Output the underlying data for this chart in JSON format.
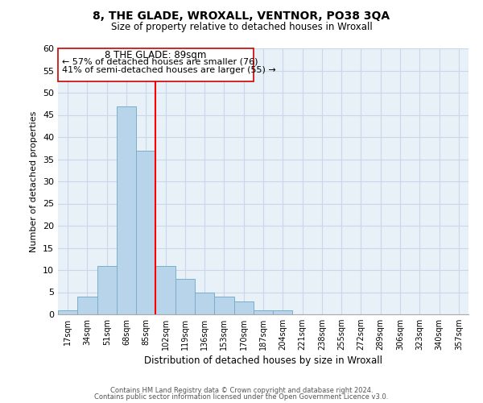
{
  "title": "8, THE GLADE, WROXALL, VENTNOR, PO38 3QA",
  "subtitle": "Size of property relative to detached houses in Wroxall",
  "xlabel": "Distribution of detached houses by size in Wroxall",
  "ylabel": "Number of detached properties",
  "bar_labels": [
    "17sqm",
    "34sqm",
    "51sqm",
    "68sqm",
    "85sqm",
    "102sqm",
    "119sqm",
    "136sqm",
    "153sqm",
    "170sqm",
    "187sqm",
    "204sqm",
    "221sqm",
    "238sqm",
    "255sqm",
    "272sqm",
    "289sqm",
    "306sqm",
    "323sqm",
    "340sqm",
    "357sqm"
  ],
  "bar_heights": [
    1,
    4,
    11,
    47,
    37,
    11,
    8,
    5,
    4,
    3,
    1,
    1,
    0,
    0,
    0,
    0,
    0,
    0,
    0,
    0,
    0
  ],
  "bar_color": "#b8d4eb",
  "bar_edge_color": "#7aaec8",
  "vline_color": "red",
  "ylim": [
    0,
    60
  ],
  "yticks": [
    0,
    5,
    10,
    15,
    20,
    25,
    30,
    35,
    40,
    45,
    50,
    55,
    60
  ],
  "annotation_title": "8 THE GLADE: 89sqm",
  "annotation_line1": "← 57% of detached houses are smaller (76)",
  "annotation_line2": "41% of semi-detached houses are larger (55) →",
  "footer1": "Contains HM Land Registry data © Crown copyright and database right 2024.",
  "footer2": "Contains public sector information licensed under the Open Government Licence v3.0.",
  "background_color": "#ffffff",
  "plot_background": "#e8f0f8",
  "grid_color": "#c8d8e8"
}
